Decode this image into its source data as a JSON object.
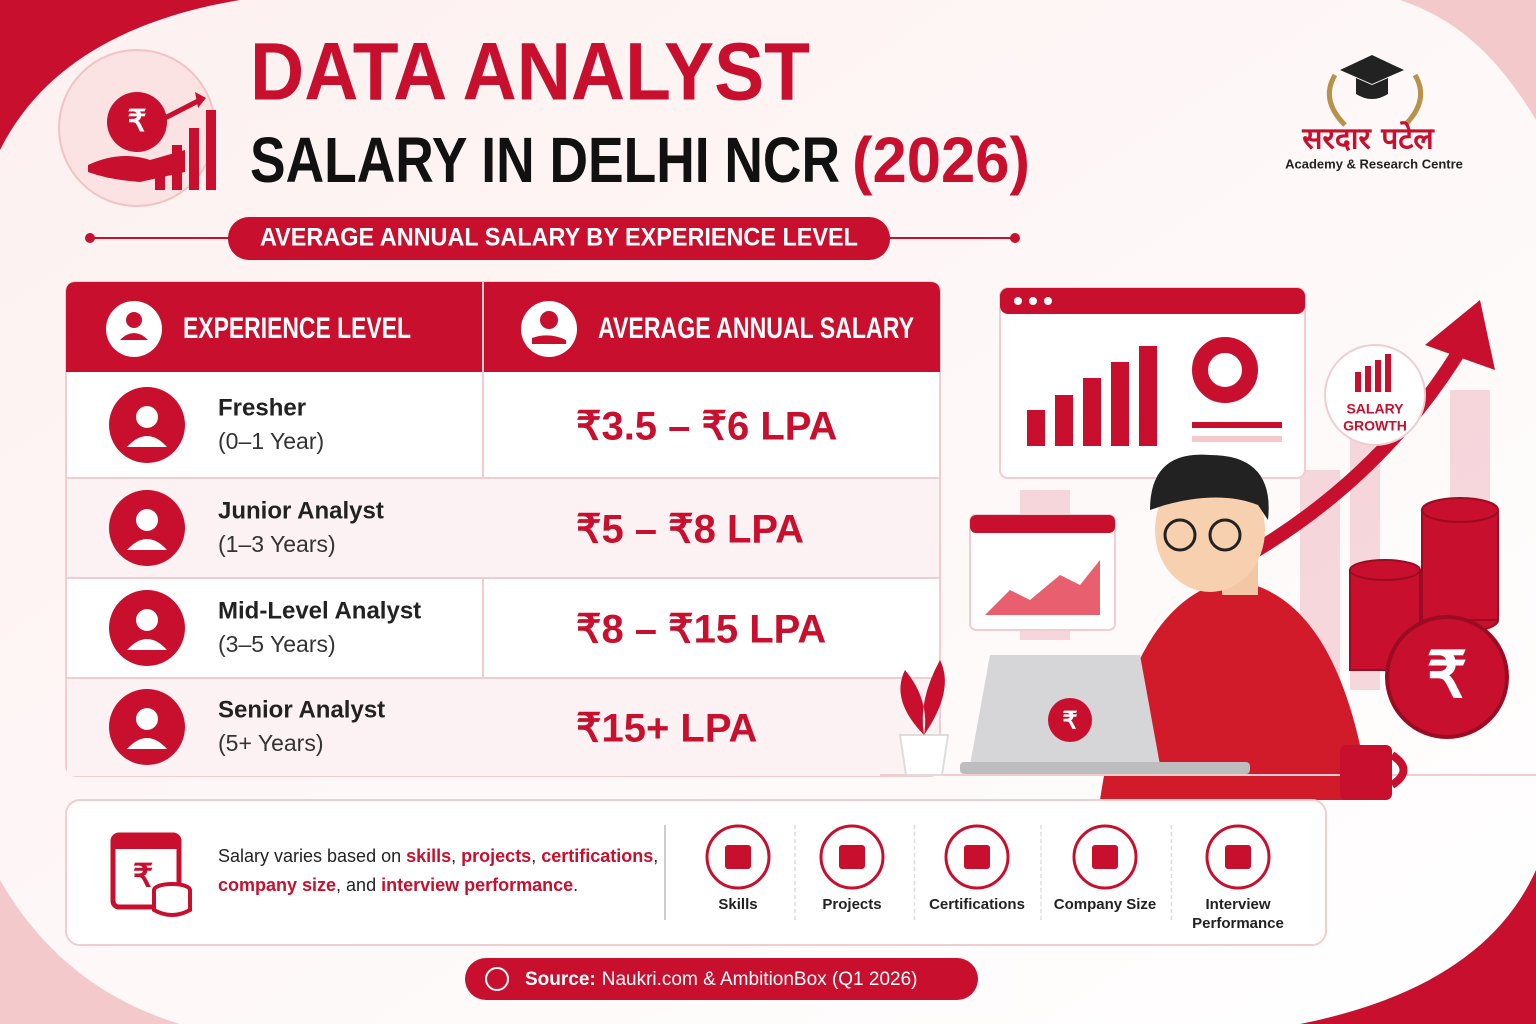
{
  "header": {
    "title_line1": "DATA ANALYST",
    "title_line2": "SALARY IN DELHI NCR",
    "title_year": "(2026)",
    "subtitle": "AVERAGE ANNUAL SALARY BY EXPERIENCE LEVEL"
  },
  "logo": {
    "name": "सरदार पटेल",
    "tagline": "Academy & Research Centre"
  },
  "table": {
    "headers": [
      "EXPERIENCE LEVEL",
      "AVERAGE ANNUAL SALARY"
    ],
    "rows": [
      {
        "level": "Fresher",
        "years": "(0–1 Year)",
        "salary": "₹3.5 – ₹6 LPA"
      },
      {
        "level": "Junior Analyst",
        "years": "(1–3 Years)",
        "salary": "₹5 – ₹8 LPA"
      },
      {
        "level": "Mid-Level Analyst",
        "years": "(3–5 Years)",
        "salary": "₹8 – ₹15 LPA"
      },
      {
        "level": "Senior Analyst",
        "years": "(5+ Years)",
        "salary": "₹15+ LPA"
      }
    ]
  },
  "illustration": {
    "badge": [
      "SALARY",
      "GROWTH"
    ]
  },
  "note": {
    "lines": [
      [
        {
          "text": "Salary varies based on ",
          "highlight": false
        },
        {
          "text": "skills",
          "highlight": true
        },
        {
          "text": ", ",
          "highlight": false
        },
        {
          "text": "projects",
          "highlight": true
        },
        {
          "text": ", ",
          "highlight": false
        },
        {
          "text": "certifications",
          "highlight": true
        },
        {
          "text": ",",
          "highlight": false
        }
      ],
      [
        {
          "text": "company size",
          "highlight": true
        },
        {
          "text": ", and ",
          "highlight": false
        },
        {
          "text": "interview performance",
          "highlight": true
        },
        {
          "text": ".",
          "highlight": false
        }
      ]
    ]
  },
  "factors": [
    [
      "Skills"
    ],
    [
      "Projects"
    ],
    [
      "Certifications"
    ],
    [
      "Company Size"
    ],
    [
      "Interview",
      "Performance"
    ]
  ],
  "source": {
    "label": "Source:",
    "text": "Naukri.com & AmbitionBox (Q1 2026)"
  }
}
